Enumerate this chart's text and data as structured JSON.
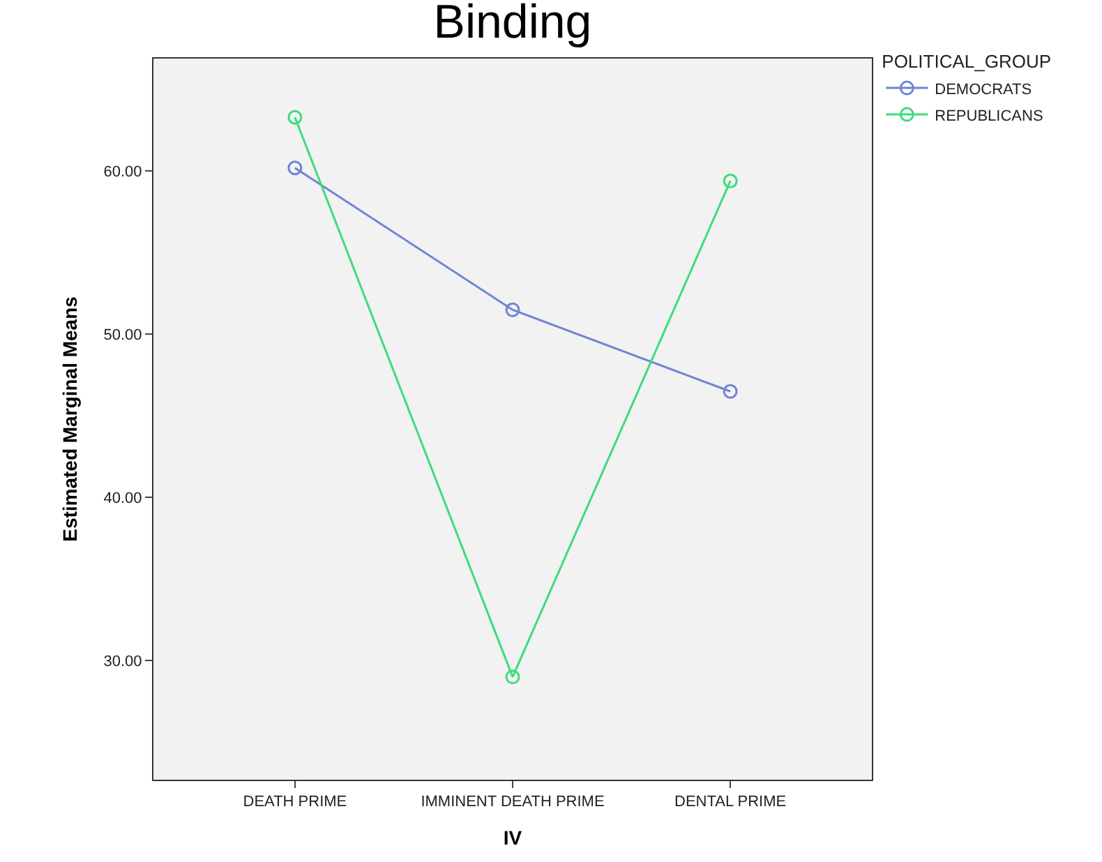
{
  "chart_data": {
    "type": "line",
    "title": "Binding",
    "xlabel": "IV",
    "ylabel": "Estimated Marginal Means",
    "legend_title": "POLITICAL_GROUP",
    "categories": [
      "DEATH PRIME",
      "IMMINENT DEATH PRIME",
      "DENTAL PRIME"
    ],
    "series": [
      {
        "name": "DEMOCRATS",
        "color": "#6f84d4",
        "values": [
          60.2,
          51.5,
          46.5
        ]
      },
      {
        "name": "REPUBLICANS",
        "color": "#3ddc7c",
        "values": [
          63.3,
          29.0,
          59.4
        ]
      }
    ],
    "ylim": [
      22.7,
      66.9
    ],
    "yticks": [
      {
        "value": 30,
        "label": "30.00"
      },
      {
        "value": 40,
        "label": "40.00"
      },
      {
        "value": 50,
        "label": "50.00"
      },
      {
        "value": 60,
        "label": "60.00"
      }
    ],
    "grid": false,
    "legend": "top right",
    "marker": "circle",
    "line_style": "solid"
  }
}
